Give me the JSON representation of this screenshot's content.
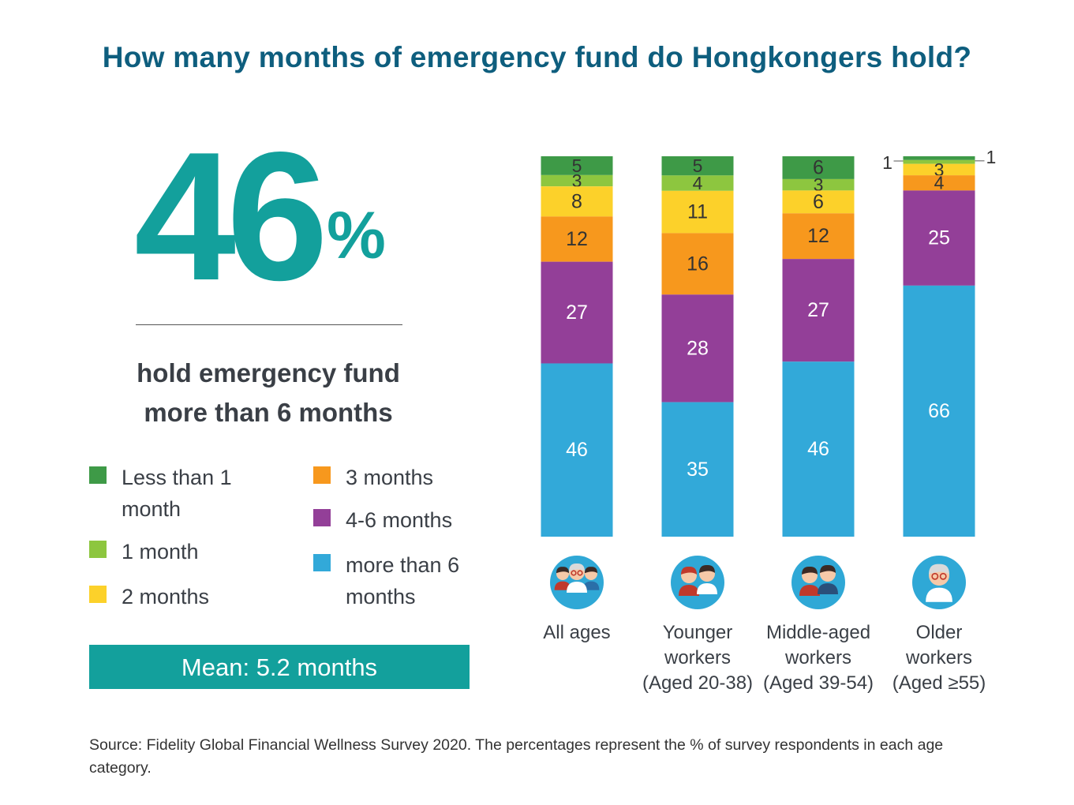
{
  "title": "How many months of emergency fund do Hongkongers hold?",
  "highlight": {
    "value": "46",
    "unit": "%",
    "caption_line1": "hold emergency fund",
    "caption_line2": "more than 6 months"
  },
  "legend": [
    {
      "label": "Less than 1 month",
      "color": "#3e9a47"
    },
    {
      "label": "1 month",
      "color": "#8dc63f"
    },
    {
      "label": "2 months",
      "color": "#fcd12a"
    },
    {
      "label": "3 months",
      "color": "#f7981d"
    },
    {
      "label": "4-6 months",
      "color": "#933f98"
    },
    {
      "label": "more than 6 months",
      "color": "#32a9d9"
    }
  ],
  "mean": "Mean: 5.2 months",
  "source": "Source: Fidelity Global Financial Wellness Survey 2020. The percentages represent the % of survey respondents in each age category.",
  "category_labels": [
    [
      "All ages"
    ],
    [
      "Younger",
      "workers",
      "(Aged 20-38)"
    ],
    [
      "Middle-aged",
      "workers",
      "(Aged 39-54)"
    ],
    [
      "Older",
      "workers",
      "(Aged ≥55)"
    ]
  ],
  "avatar_icons": [
    "family-group-icon",
    "young-couple-icon",
    "middle-aged-couple-icon",
    "older-man-icon"
  ],
  "chart_data": {
    "type": "bar",
    "stacked": true,
    "unit": "%",
    "categories": [
      "All ages",
      "Younger workers (Aged 20-38)",
      "Middle-aged workers (Aged 39-54)",
      "Older workers (Aged ≥55)"
    ],
    "series": [
      {
        "name": "Less than 1 month",
        "color": "#3e9a47",
        "values": [
          5,
          5,
          6,
          1
        ]
      },
      {
        "name": "1 month",
        "color": "#8dc63f",
        "values": [
          3,
          4,
          3,
          1
        ]
      },
      {
        "name": "2 months",
        "color": "#fcd12a",
        "values": [
          8,
          11,
          6,
          3
        ]
      },
      {
        "name": "3 months",
        "color": "#f7981d",
        "values": [
          12,
          16,
          12,
          4
        ]
      },
      {
        "name": "4-6 months",
        "color": "#933f98",
        "values": [
          27,
          28,
          27,
          25
        ]
      },
      {
        "name": "more than 6 months",
        "color": "#32a9d9",
        "values": [
          46,
          35,
          46,
          66
        ]
      }
    ],
    "ylim": [
      0,
      100
    ],
    "grid": false
  }
}
